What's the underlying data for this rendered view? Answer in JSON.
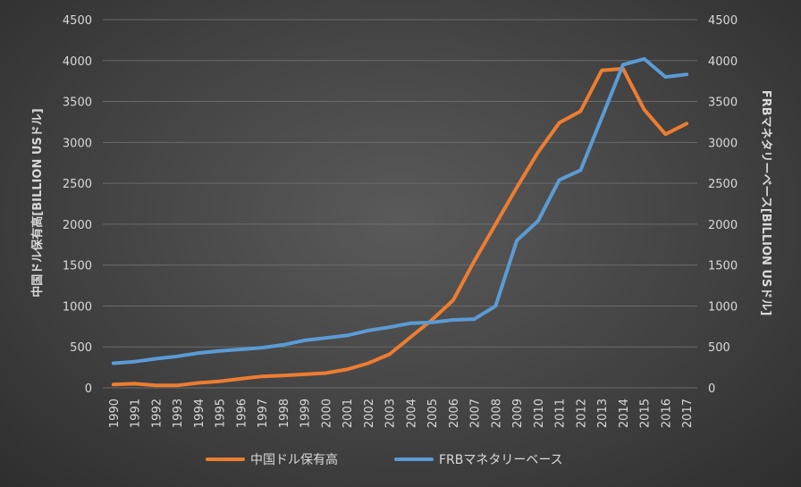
{
  "chart_data": {
    "type": "line",
    "x": [
      "1990",
      "1991",
      "1992",
      "1993",
      "1994",
      "1995",
      "1996",
      "1997",
      "1998",
      "1999",
      "2000",
      "2001",
      "2002",
      "2003",
      "2004",
      "2005",
      "2006",
      "2007",
      "2008",
      "2009",
      "2010",
      "2011",
      "2012",
      "2013",
      "2014",
      "2015",
      "2016",
      "2017"
    ],
    "series": [
      {
        "name": "中国ドル保有高",
        "axis": "left",
        "color": "#ed7d31",
        "values": [
          40,
          50,
          30,
          30,
          60,
          80,
          110,
          140,
          150,
          165,
          180,
          225,
          300,
          410,
          620,
          830,
          1070,
          1550,
          2000,
          2450,
          2880,
          3240,
          3380,
          3880,
          3900,
          3400,
          3100,
          3230
        ]
      },
      {
        "name": "FRBマネタリーベース",
        "axis": "right",
        "color": "#5b9bd5",
        "values": [
          300,
          320,
          355,
          385,
          425,
          450,
          470,
          490,
          525,
          580,
          610,
          640,
          700,
          740,
          790,
          800,
          830,
          840,
          1000,
          1800,
          2040,
          2540,
          2660,
          3300,
          3950,
          4020,
          3800,
          3830
        ]
      }
    ],
    "ylabel_left": "中国ドル保有高[BILLION USドル]",
    "ylabel_right": "FRBマネタリーベース[BILLION USドル]",
    "ylim_left": [
      0,
      4500
    ],
    "ylim_right": [
      0,
      4500
    ],
    "yticks_left": [
      "0",
      "500",
      "1000",
      "1500",
      "2000",
      "2500",
      "3000",
      "3500",
      "4000",
      "4500"
    ],
    "yticks_right": [
      "0",
      "500",
      "1000",
      "1500",
      "2000",
      "2500",
      "3000",
      "3500",
      "4000",
      "4500"
    ],
    "grid": true,
    "legend_position": "bottom"
  }
}
